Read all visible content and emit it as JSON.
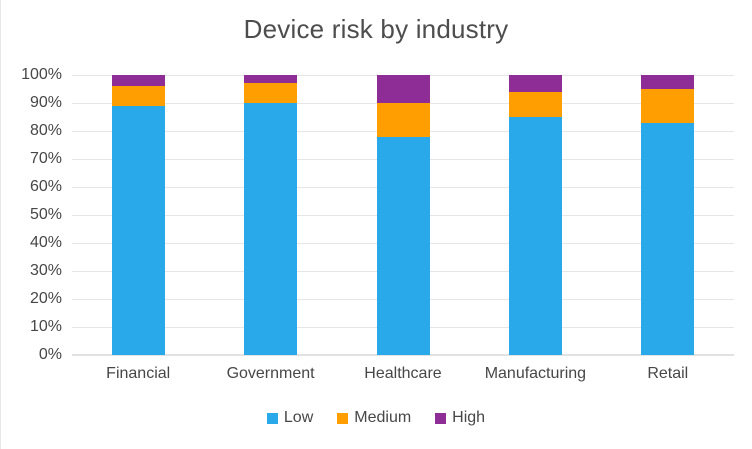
{
  "title": "Device risk by industry",
  "colors": {
    "low": "#29A9E9",
    "medium": "#FF9E00",
    "high": "#8F2D96",
    "text": "#474747",
    "title_text": "#4D4D4D",
    "gridline": "#E6E6E6",
    "axis_line": "#E2E2E2",
    "background": "#FFFFFF"
  },
  "chart_data": {
    "type": "bar",
    "stacked": true,
    "title": "Device risk by industry",
    "xlabel": "",
    "ylabel": "",
    "categories": [
      "Financial",
      "Government",
      "Healthcare",
      "Manufacturing",
      "Retail"
    ],
    "series": [
      {
        "name": "Low",
        "color_key": "low",
        "values": [
          89,
          90,
          78,
          85,
          83
        ]
      },
      {
        "name": "Medium",
        "color_key": "medium",
        "values": [
          7,
          7,
          12,
          9,
          12
        ]
      },
      {
        "name": "High",
        "color_key": "high",
        "values": [
          4,
          3,
          10,
          6,
          5
        ]
      }
    ],
    "ylim": [
      0,
      100
    ],
    "y_tick_step": 10,
    "y_ticks": [
      "0%",
      "10%",
      "20%",
      "30%",
      "40%",
      "50%",
      "60%",
      "70%",
      "80%",
      "90%",
      "100%"
    ],
    "grid": true,
    "legend_position": "bottom",
    "legend": [
      "Low",
      "Medium",
      "High"
    ]
  }
}
